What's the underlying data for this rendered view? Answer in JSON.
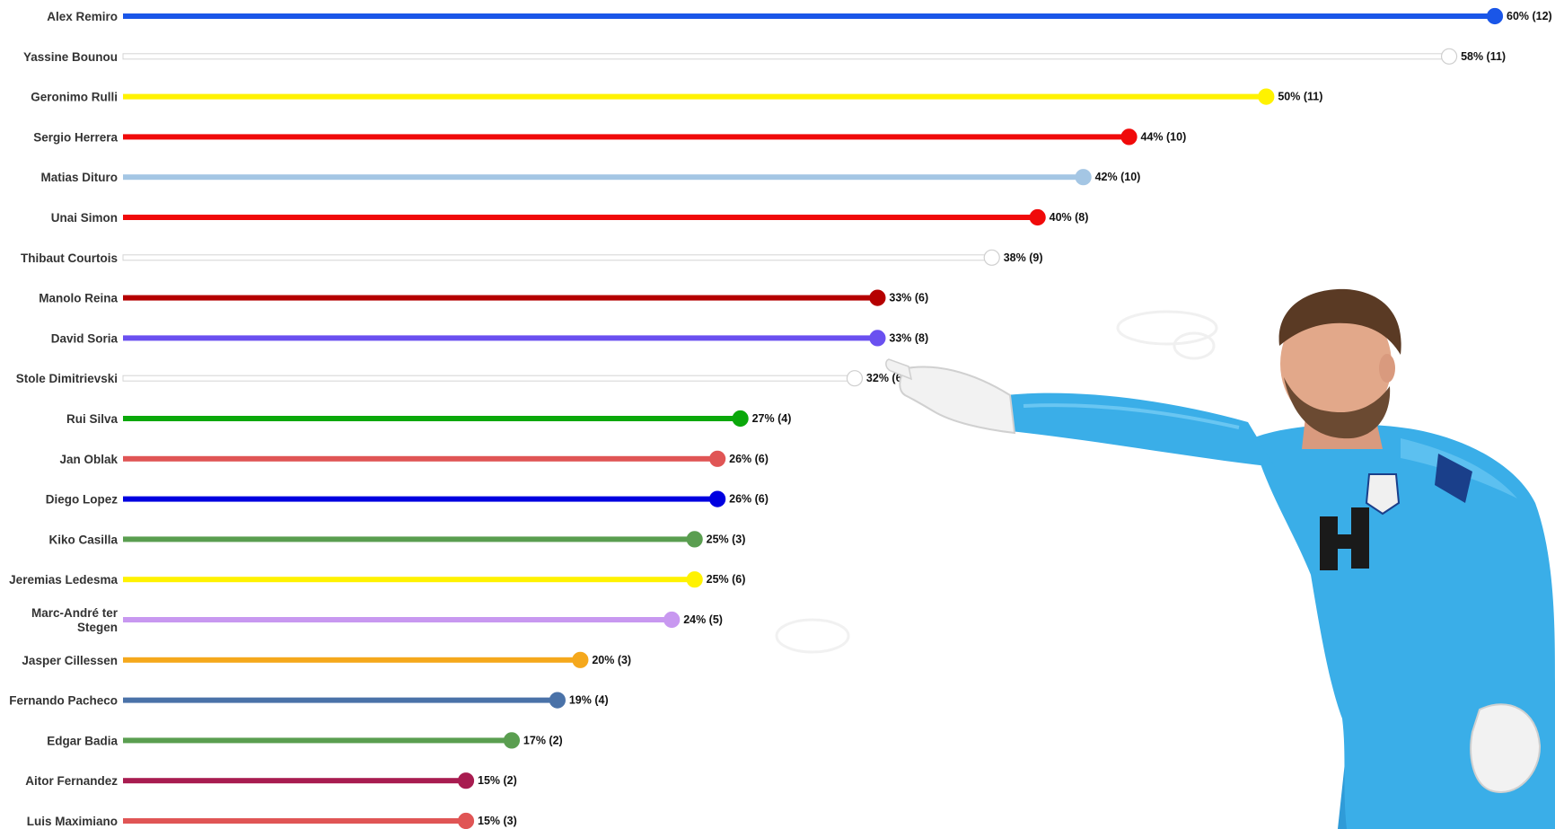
{
  "chart_data": {
    "type": "bar",
    "style": "lollipop",
    "orientation": "horizontal",
    "title": "",
    "xlabel": "",
    "ylabel": "",
    "xlim": [
      0,
      60
    ],
    "grid": false,
    "legend": "none",
    "series": [
      {
        "name": "Alex Remiro",
        "percent": 60,
        "count": 12,
        "label": "60% (12)",
        "color": "#1a56e8"
      },
      {
        "name": "Yassine Bounou",
        "percent": 58,
        "count": 11,
        "label": "58% (11)",
        "color": "#ffffff"
      },
      {
        "name": "Geronimo Rulli",
        "percent": 50,
        "count": 11,
        "label": "50% (11)",
        "color": "#fff200"
      },
      {
        "name": "Sergio Herrera",
        "percent": 44,
        "count": 10,
        "label": "44% (10)",
        "color": "#f00a0a"
      },
      {
        "name": "Matias Dituro",
        "percent": 42,
        "count": 10,
        "label": "42% (10)",
        "color": "#a4c6e4"
      },
      {
        "name": "Unai Simon",
        "percent": 40,
        "count": 8,
        "label": "40% (8)",
        "color": "#f00a0a"
      },
      {
        "name": "Thibaut Courtois",
        "percent": 38,
        "count": 9,
        "label": "38% (9)",
        "color": "#ffffff"
      },
      {
        "name": "Manolo Reina",
        "percent": 33,
        "count": 6,
        "label": "33% (6)",
        "color": "#b50000"
      },
      {
        "name": "David Soria",
        "percent": 33,
        "count": 8,
        "label": "33% (8)",
        "color": "#6a50f0"
      },
      {
        "name": "Stole Dimitrievski",
        "percent": 32,
        "count": 6,
        "label": "32% (6)",
        "color": "#ffffff"
      },
      {
        "name": "Rui Silva",
        "percent": 27,
        "count": 4,
        "label": "27% (4)",
        "color": "#0aa80a"
      },
      {
        "name": "Jan Oblak",
        "percent": 26,
        "count": 6,
        "label": "26% (6)",
        "color": "#e05555"
      },
      {
        "name": "Diego Lopez",
        "percent": 26,
        "count": 6,
        "label": "26% (6)",
        "color": "#0000e0"
      },
      {
        "name": "Kiko Casilla",
        "percent": 25,
        "count": 3,
        "label": "25% (3)",
        "color": "#5a9e50"
      },
      {
        "name": "Jeremias Ledesma",
        "percent": 25,
        "count": 6,
        "label": "25% (6)",
        "color": "#fff200"
      },
      {
        "name": "Marc-André ter Stegen",
        "percent": 24,
        "count": 5,
        "label": "24% (5)",
        "color": "#c898f0"
      },
      {
        "name": "Jasper Cillessen",
        "percent": 20,
        "count": 3,
        "label": "20% (3)",
        "color": "#f5a81c"
      },
      {
        "name": "Fernando Pacheco",
        "percent": 19,
        "count": 4,
        "label": "19% (4)",
        "color": "#4a72a8"
      },
      {
        "name": "Edgar Badia",
        "percent": 17,
        "count": 2,
        "label": "17% (2)",
        "color": "#5a9e50"
      },
      {
        "name": "Aitor Fernandez",
        "percent": 15,
        "count": 2,
        "label": "15% (2)",
        "color": "#a81c50"
      },
      {
        "name": "Luis Maximiano",
        "percent": 15,
        "count": 3,
        "label": "15% (3)",
        "color": "#e05555"
      }
    ]
  },
  "decorations": {
    "player_photo": "goalkeeper-pointing-photo",
    "jersey_color": "#3aaee8",
    "glove_color": "#f4f4f4"
  }
}
